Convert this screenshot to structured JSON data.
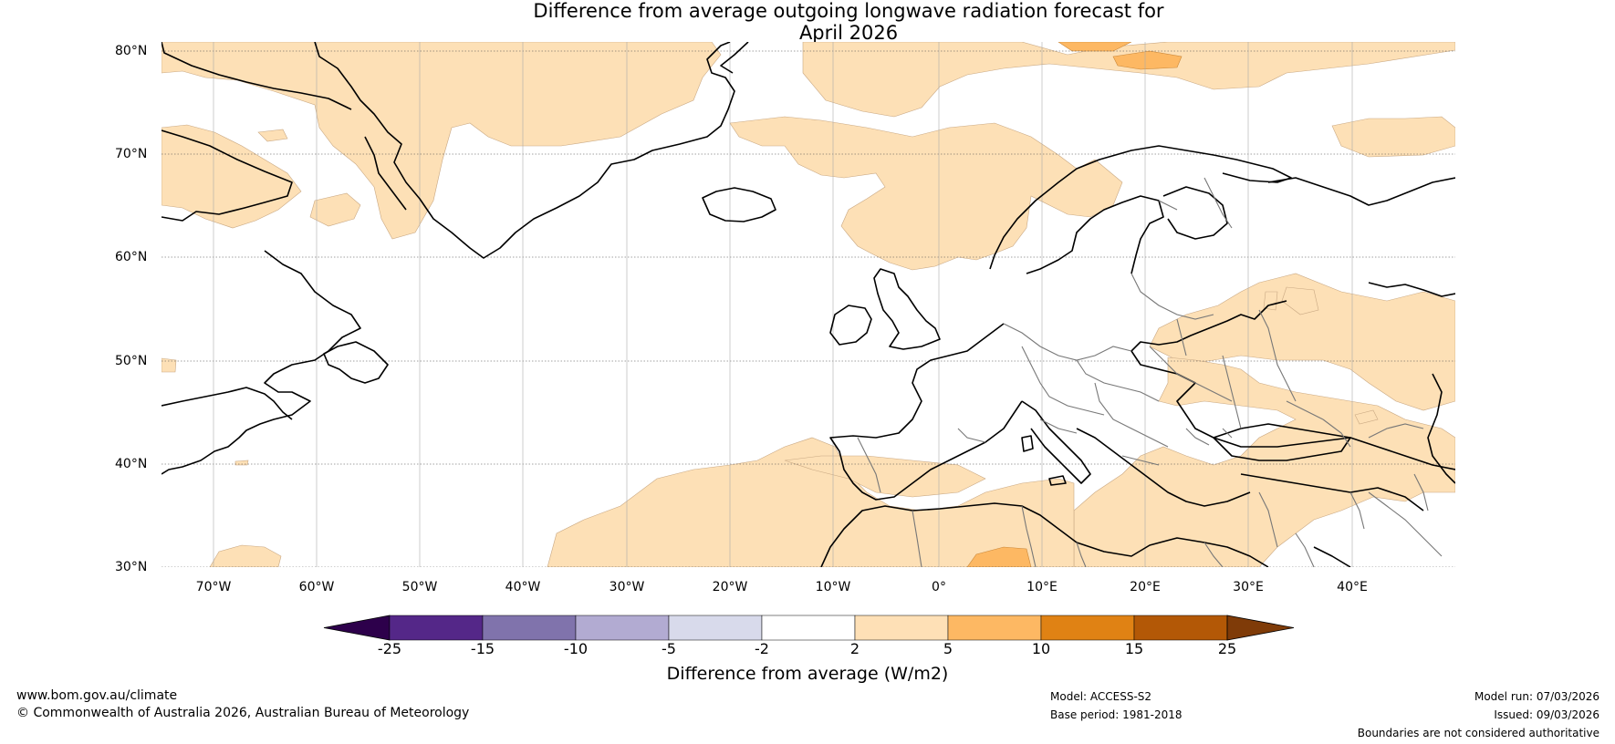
{
  "title": {
    "line1": "Difference from average outgoing longwave radiation forecast for",
    "line2": "April 2026"
  },
  "map": {
    "lat_labels": [
      "80°N",
      "70°N",
      "60°N",
      "50°N",
      "40°N",
      "30°N"
    ],
    "lon_labels": [
      "70°W",
      "60°W",
      "50°W",
      "40°W",
      "30°W",
      "20°W",
      "10°W",
      "0°",
      "10°E",
      "20°E",
      "30°E",
      "40°E"
    ],
    "colors": {
      "ocean": "#ffffff",
      "anomaly_2_5": "#fde0b6",
      "anomaly_5_10": "#fdb863",
      "coast": "#000000",
      "border": "#777777"
    }
  },
  "colorbar": {
    "title": "Difference from average (W/m2)",
    "ticks": [
      "-25",
      "-15",
      "-10",
      "-5",
      "-2",
      "2",
      "5",
      "10",
      "15",
      "25"
    ],
    "colors": [
      "#2d004b",
      "#542788",
      "#8073ac",
      "#b2abd2",
      "#d8daeb",
      "#ffffff",
      "#fee0b6",
      "#fdb863",
      "#e08214",
      "#b35806",
      "#7f3b08"
    ]
  },
  "footer": {
    "website": "www.bom.gov.au/climate",
    "copyright": "© Commonwealth of Australia 2026, Australian Bureau of Meteorology",
    "model": "Model: ACCESS-S2",
    "base_period": "Base period: 1981-2018",
    "model_run": "Model run: 07/03/2026",
    "issued": "Issued: 09/03/2026",
    "disclaimer": "Boundaries are not considered authoritative"
  }
}
